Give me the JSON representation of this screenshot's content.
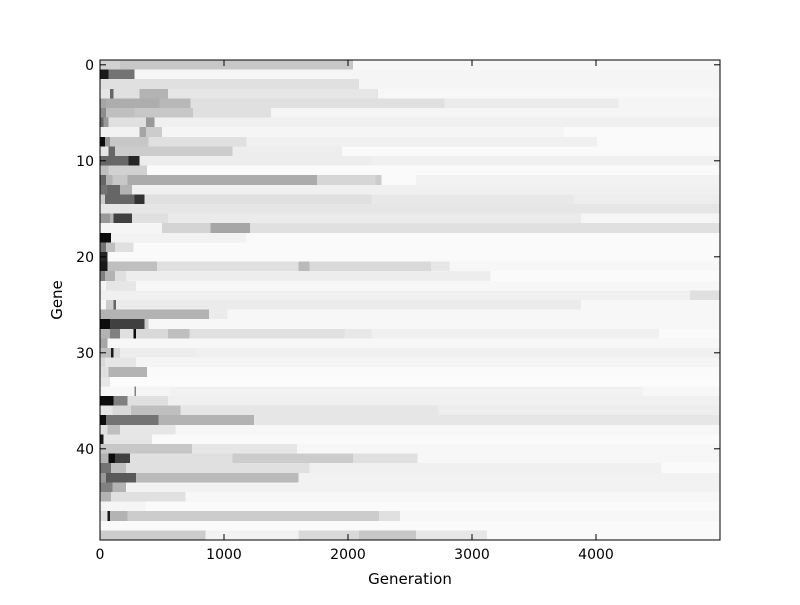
{
  "chart_data": {
    "type": "heatmap",
    "title": "",
    "xlabel": "Generation",
    "ylabel": "Gene",
    "xlim": [
      0,
      5000
    ],
    "ylim_reversed": [
      -0.5,
      49.5
    ],
    "x_ticks": [
      0,
      1000,
      2000,
      3000,
      4000
    ],
    "y_ticks": [
      0,
      10,
      20,
      30,
      40
    ],
    "x_tick_labels": [
      "0",
      "1000",
      "2000",
      "3000",
      "4000"
    ],
    "y_tick_labels": [
      "0",
      "10",
      "20",
      "30",
      "40"
    ],
    "colormap": "grayscale, higher value = darker",
    "grid": false,
    "legend": "none",
    "rows": [
      {
        "gene": 0,
        "segments": [
          [
            0,
            160,
            0.18
          ],
          [
            160,
            2040,
            0.22
          ],
          [
            2040,
            5000,
            0.03
          ]
        ]
      },
      {
        "gene": 1,
        "segments": [
          [
            0,
            70,
            0.9
          ],
          [
            70,
            280,
            0.55
          ],
          [
            280,
            5000,
            0.04
          ]
        ]
      },
      {
        "gene": 2,
        "segments": [
          [
            0,
            2090,
            0.12
          ],
          [
            2090,
            5000,
            0.04
          ]
        ]
      },
      {
        "gene": 3,
        "segments": [
          [
            0,
            80,
            0.1
          ],
          [
            80,
            110,
            0.6
          ],
          [
            110,
            320,
            0.12
          ],
          [
            320,
            550,
            0.3
          ],
          [
            550,
            2240,
            0.1
          ],
          [
            2240,
            5000,
            0.03
          ]
        ]
      },
      {
        "gene": 4,
        "segments": [
          [
            0,
            50,
            0.35
          ],
          [
            50,
            480,
            0.32
          ],
          [
            480,
            730,
            0.28
          ],
          [
            730,
            2780,
            0.12
          ],
          [
            2780,
            4180,
            0.08
          ],
          [
            4180,
            5000,
            0.04
          ]
        ]
      },
      {
        "gene": 5,
        "segments": [
          [
            0,
            50,
            0.45
          ],
          [
            50,
            280,
            0.25
          ],
          [
            280,
            750,
            0.22
          ],
          [
            750,
            1380,
            0.12
          ],
          [
            1380,
            5000,
            0.04
          ]
        ]
      },
      {
        "gene": 6,
        "segments": [
          [
            0,
            30,
            0.6
          ],
          [
            30,
            70,
            0.4
          ],
          [
            70,
            370,
            0.12
          ],
          [
            370,
            440,
            0.4
          ],
          [
            440,
            5000,
            0.06
          ]
        ]
      },
      {
        "gene": 7,
        "segments": [
          [
            0,
            320,
            0.05
          ],
          [
            320,
            370,
            0.35
          ],
          [
            370,
            500,
            0.2
          ],
          [
            500,
            3740,
            0.04
          ],
          [
            3740,
            5000,
            0.02
          ]
        ]
      },
      {
        "gene": 8,
        "segments": [
          [
            0,
            40,
            0.95
          ],
          [
            40,
            80,
            0.4
          ],
          [
            80,
            390,
            0.22
          ],
          [
            390,
            1180,
            0.12
          ],
          [
            1180,
            4010,
            0.06
          ],
          [
            4010,
            5000,
            0.02
          ]
        ]
      },
      {
        "gene": 9,
        "segments": [
          [
            0,
            70,
            0.1
          ],
          [
            70,
            120,
            0.6
          ],
          [
            120,
            1070,
            0.2
          ],
          [
            1070,
            1950,
            0.07
          ],
          [
            1950,
            5000,
            0.02
          ]
        ]
      },
      {
        "gene": 10,
        "segments": [
          [
            0,
            230,
            0.6
          ],
          [
            230,
            320,
            0.85
          ],
          [
            320,
            2190,
            0.07
          ],
          [
            2190,
            5000,
            0.06
          ]
        ]
      },
      {
        "gene": 11,
        "segments": [
          [
            0,
            70,
            0.25
          ],
          [
            70,
            380,
            0.18
          ],
          [
            380,
            5000,
            0.02
          ]
        ]
      },
      {
        "gene": 12,
        "segments": [
          [
            0,
            50,
            0.6
          ],
          [
            50,
            100,
            0.3
          ],
          [
            100,
            220,
            0.22
          ],
          [
            220,
            1750,
            0.33
          ],
          [
            1750,
            2220,
            0.16
          ],
          [
            2220,
            2270,
            0.2
          ],
          [
            2270,
            2550,
            0.02
          ],
          [
            2550,
            5000,
            0.05
          ]
        ]
      },
      {
        "gene": 13,
        "segments": [
          [
            0,
            60,
            0.55
          ],
          [
            60,
            160,
            0.6
          ],
          [
            160,
            260,
            0.3
          ],
          [
            260,
            5000,
            0.06
          ]
        ]
      },
      {
        "gene": 14,
        "segments": [
          [
            0,
            40,
            0.2
          ],
          [
            40,
            280,
            0.6
          ],
          [
            280,
            360,
            0.8
          ],
          [
            360,
            2190,
            0.12
          ],
          [
            2190,
            3820,
            0.09
          ],
          [
            3820,
            5000,
            0.07
          ]
        ]
      },
      {
        "gene": 15,
        "segments": [
          [
            0,
            5000,
            0.1
          ]
        ]
      },
      {
        "gene": 16,
        "segments": [
          [
            0,
            80,
            0.4
          ],
          [
            80,
            110,
            0.3
          ],
          [
            110,
            260,
            0.75
          ],
          [
            260,
            550,
            0.12
          ],
          [
            550,
            3880,
            0.08
          ],
          [
            3880,
            5000,
            0.04
          ]
        ]
      },
      {
        "gene": 17,
        "segments": [
          [
            0,
            500,
            0.04
          ],
          [
            500,
            890,
            0.17
          ],
          [
            890,
            1210,
            0.35
          ],
          [
            1210,
            5000,
            0.12
          ]
        ]
      },
      {
        "gene": 18,
        "segments": [
          [
            0,
            90,
            0.95
          ],
          [
            90,
            1180,
            0.05
          ],
          [
            1180,
            5000,
            0.02
          ]
        ]
      },
      {
        "gene": 19,
        "segments": [
          [
            0,
            50,
            0.55
          ],
          [
            50,
            120,
            0.25
          ],
          [
            120,
            270,
            0.12
          ],
          [
            270,
            5000,
            0.02
          ]
        ]
      },
      {
        "gene": 20,
        "segments": [
          [
            0,
            60,
            0.85
          ],
          [
            60,
            5000,
            0.02
          ]
        ]
      },
      {
        "gene": 21,
        "segments": [
          [
            0,
            60,
            0.9
          ],
          [
            60,
            460,
            0.25
          ],
          [
            460,
            1600,
            0.12
          ],
          [
            1600,
            1690,
            0.27
          ],
          [
            1690,
            2670,
            0.15
          ],
          [
            2670,
            2820,
            0.1
          ],
          [
            2820,
            5000,
            0.03
          ]
        ]
      },
      {
        "gene": 22,
        "segments": [
          [
            0,
            40,
            0.5
          ],
          [
            40,
            120,
            0.3
          ],
          [
            120,
            210,
            0.12
          ],
          [
            210,
            3150,
            0.07
          ],
          [
            3150,
            5000,
            0.02
          ]
        ]
      },
      {
        "gene": 23,
        "segments": [
          [
            0,
            50,
            0.04
          ],
          [
            50,
            290,
            0.1
          ],
          [
            290,
            5000,
            0.03
          ]
        ]
      },
      {
        "gene": 24,
        "segments": [
          [
            0,
            4760,
            0.06
          ],
          [
            4760,
            5000,
            0.12
          ]
        ]
      },
      {
        "gene": 25,
        "segments": [
          [
            0,
            50,
            0.03
          ],
          [
            50,
            110,
            0.2
          ],
          [
            110,
            130,
            0.6
          ],
          [
            130,
            3880,
            0.08
          ],
          [
            3880,
            5000,
            0.03
          ]
        ]
      },
      {
        "gene": 26,
        "segments": [
          [
            0,
            880,
            0.3
          ],
          [
            880,
            1030,
            0.08
          ],
          [
            1030,
            5000,
            0.03
          ]
        ]
      },
      {
        "gene": 27,
        "segments": [
          [
            0,
            80,
            0.95
          ],
          [
            80,
            360,
            0.75
          ],
          [
            360,
            390,
            0.2
          ],
          [
            390,
            5000,
            0.03
          ]
        ]
      },
      {
        "gene": 28,
        "segments": [
          [
            0,
            80,
            0.3
          ],
          [
            80,
            160,
            0.5
          ],
          [
            160,
            270,
            0.12
          ],
          [
            270,
            290,
            0.95
          ],
          [
            290,
            550,
            0.15
          ],
          [
            550,
            720,
            0.25
          ],
          [
            720,
            1970,
            0.12
          ],
          [
            1970,
            2190,
            0.09
          ],
          [
            2190,
            4510,
            0.06
          ],
          [
            4510,
            5000,
            0.02
          ]
        ]
      },
      {
        "gene": 29,
        "segments": [
          [
            0,
            60,
            0.35
          ],
          [
            60,
            5000,
            0.03
          ]
        ]
      },
      {
        "gene": 30,
        "segments": [
          [
            0,
            90,
            0.25
          ],
          [
            90,
            110,
            0.9
          ],
          [
            110,
            160,
            0.15
          ],
          [
            160,
            780,
            0.07
          ],
          [
            780,
            5000,
            0.06
          ]
        ]
      },
      {
        "gene": 31,
        "segments": [
          [
            0,
            40,
            0.15
          ],
          [
            40,
            290,
            0.1
          ],
          [
            290,
            5000,
            0.04
          ]
        ]
      },
      {
        "gene": 32,
        "segments": [
          [
            0,
            70,
            0.12
          ],
          [
            70,
            380,
            0.3
          ],
          [
            380,
            5000,
            0.02
          ]
        ]
      },
      {
        "gene": 33,
        "segments": [
          [
            0,
            80,
            0.1
          ],
          [
            80,
            5000,
            0.01
          ]
        ]
      },
      {
        "gene": 34,
        "segments": [
          [
            0,
            280,
            0.03
          ],
          [
            280,
            290,
            0.5
          ],
          [
            290,
            560,
            0.04
          ],
          [
            560,
            4380,
            0.05
          ],
          [
            4380,
            5000,
            0.03
          ]
        ]
      },
      {
        "gene": 35,
        "segments": [
          [
            0,
            110,
            0.95
          ],
          [
            110,
            220,
            0.5
          ],
          [
            220,
            550,
            0.12
          ],
          [
            550,
            5000,
            0.06
          ]
        ]
      },
      {
        "gene": 36,
        "segments": [
          [
            0,
            100,
            0.1
          ],
          [
            100,
            250,
            0.15
          ],
          [
            250,
            650,
            0.25
          ],
          [
            650,
            2730,
            0.1
          ],
          [
            2730,
            5000,
            0.07
          ]
        ]
      },
      {
        "gene": 37,
        "segments": [
          [
            0,
            50,
            0.95
          ],
          [
            50,
            470,
            0.55
          ],
          [
            470,
            1240,
            0.3
          ],
          [
            1240,
            5000,
            0.1
          ]
        ]
      },
      {
        "gene": 38,
        "segments": [
          [
            0,
            60,
            0.12
          ],
          [
            60,
            160,
            0.25
          ],
          [
            160,
            610,
            0.1
          ],
          [
            610,
            5000,
            0.03
          ]
        ]
      },
      {
        "gene": 39,
        "segments": [
          [
            0,
            30,
            0.9
          ],
          [
            30,
            420,
            0.1
          ],
          [
            420,
            5000,
            0.02
          ]
        ]
      },
      {
        "gene": 40,
        "segments": [
          [
            0,
            740,
            0.22
          ],
          [
            740,
            1590,
            0.1
          ],
          [
            1590,
            5000,
            0.03
          ]
        ]
      },
      {
        "gene": 41,
        "segments": [
          [
            0,
            70,
            0.3
          ],
          [
            70,
            120,
            0.95
          ],
          [
            120,
            240,
            0.75
          ],
          [
            240,
            1070,
            0.12
          ],
          [
            1070,
            2040,
            0.2
          ],
          [
            2040,
            2560,
            0.12
          ],
          [
            2560,
            5000,
            0.03
          ]
        ]
      },
      {
        "gene": 42,
        "segments": [
          [
            0,
            90,
            0.55
          ],
          [
            90,
            210,
            0.25
          ],
          [
            210,
            1690,
            0.12
          ],
          [
            1690,
            4530,
            0.06
          ],
          [
            4530,
            5000,
            0.02
          ]
        ]
      },
      {
        "gene": 43,
        "segments": [
          [
            0,
            50,
            0.4
          ],
          [
            50,
            290,
            0.65
          ],
          [
            290,
            1600,
            0.27
          ],
          [
            1600,
            5000,
            0.05
          ]
        ]
      },
      {
        "gene": 44,
        "segments": [
          [
            0,
            100,
            0.5
          ],
          [
            100,
            210,
            0.3
          ],
          [
            210,
            5000,
            0.05
          ]
        ]
      },
      {
        "gene": 45,
        "segments": [
          [
            0,
            90,
            0.3
          ],
          [
            90,
            690,
            0.12
          ],
          [
            690,
            5000,
            0.03
          ]
        ]
      },
      {
        "gene": 46,
        "segments": [
          [
            0,
            370,
            0.04
          ],
          [
            370,
            5000,
            0.02
          ]
        ]
      },
      {
        "gene": 47,
        "segments": [
          [
            0,
            60,
            0.12
          ],
          [
            60,
            80,
            0.9
          ],
          [
            80,
            220,
            0.3
          ],
          [
            220,
            2250,
            0.2
          ],
          [
            2250,
            2420,
            0.12
          ],
          [
            2420,
            5000,
            0.03
          ]
        ]
      },
      {
        "gene": 48,
        "segments": [
          [
            0,
            5000,
            0.02
          ]
        ]
      },
      {
        "gene": 49,
        "segments": [
          [
            0,
            850,
            0.2
          ],
          [
            850,
            1600,
            0.05
          ],
          [
            1600,
            2090,
            0.15
          ],
          [
            2090,
            2550,
            0.22
          ],
          [
            2550,
            3120,
            0.1
          ],
          [
            3120,
            5000,
            0.02
          ]
        ]
      }
    ]
  }
}
